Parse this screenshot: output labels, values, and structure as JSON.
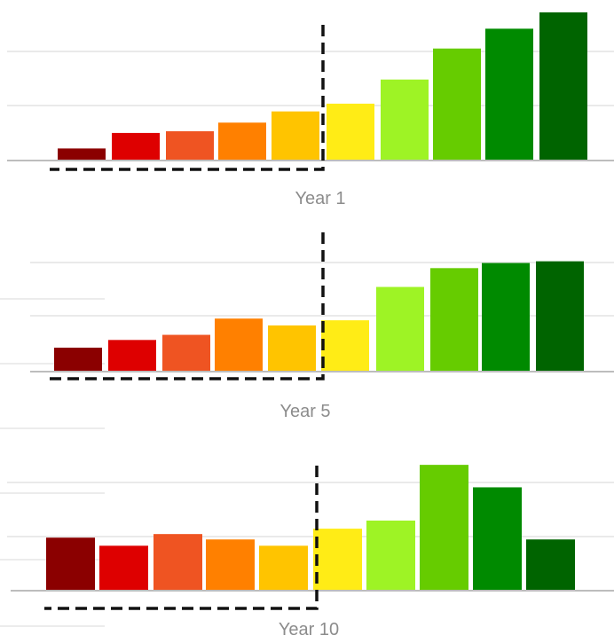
{
  "chart_data": [
    {
      "type": "bar",
      "caption": "Year 1",
      "values": [
        14,
        32,
        34,
        44,
        57,
        66,
        94,
        130,
        153,
        172
      ],
      "colors": [
        "#8b0000",
        "#de0000",
        "#ef5422",
        "#ff8000",
        "#ffc400",
        "#ffec16",
        "#9ef325",
        "#66cc00",
        "#008a00",
        "#006400"
      ],
      "ylim": [
        0,
        175
      ],
      "grid": true
    },
    {
      "type": "bar",
      "caption": "Year 5",
      "values": [
        28,
        37,
        43,
        62,
        54,
        60,
        99,
        121,
        127,
        129
      ],
      "colors": [
        "#8b0000",
        "#de0000",
        "#ef5422",
        "#ff8000",
        "#ffc400",
        "#ffec16",
        "#9ef325",
        "#66cc00",
        "#008a00",
        "#006400"
      ],
      "ylim": [
        0,
        140
      ],
      "grid": true
    },
    {
      "type": "bar",
      "caption": "Year 10",
      "values": [
        59,
        50,
        63,
        57,
        50,
        69,
        78,
        140,
        115,
        57
      ],
      "colors": [
        "#8b0000",
        "#de0000",
        "#ef5422",
        "#ff8000",
        "#ffc400",
        "#ffec16",
        "#9ef325",
        "#66cc00",
        "#008a00",
        "#006400"
      ],
      "ylim": [
        0,
        150
      ],
      "grid": true
    }
  ]
}
